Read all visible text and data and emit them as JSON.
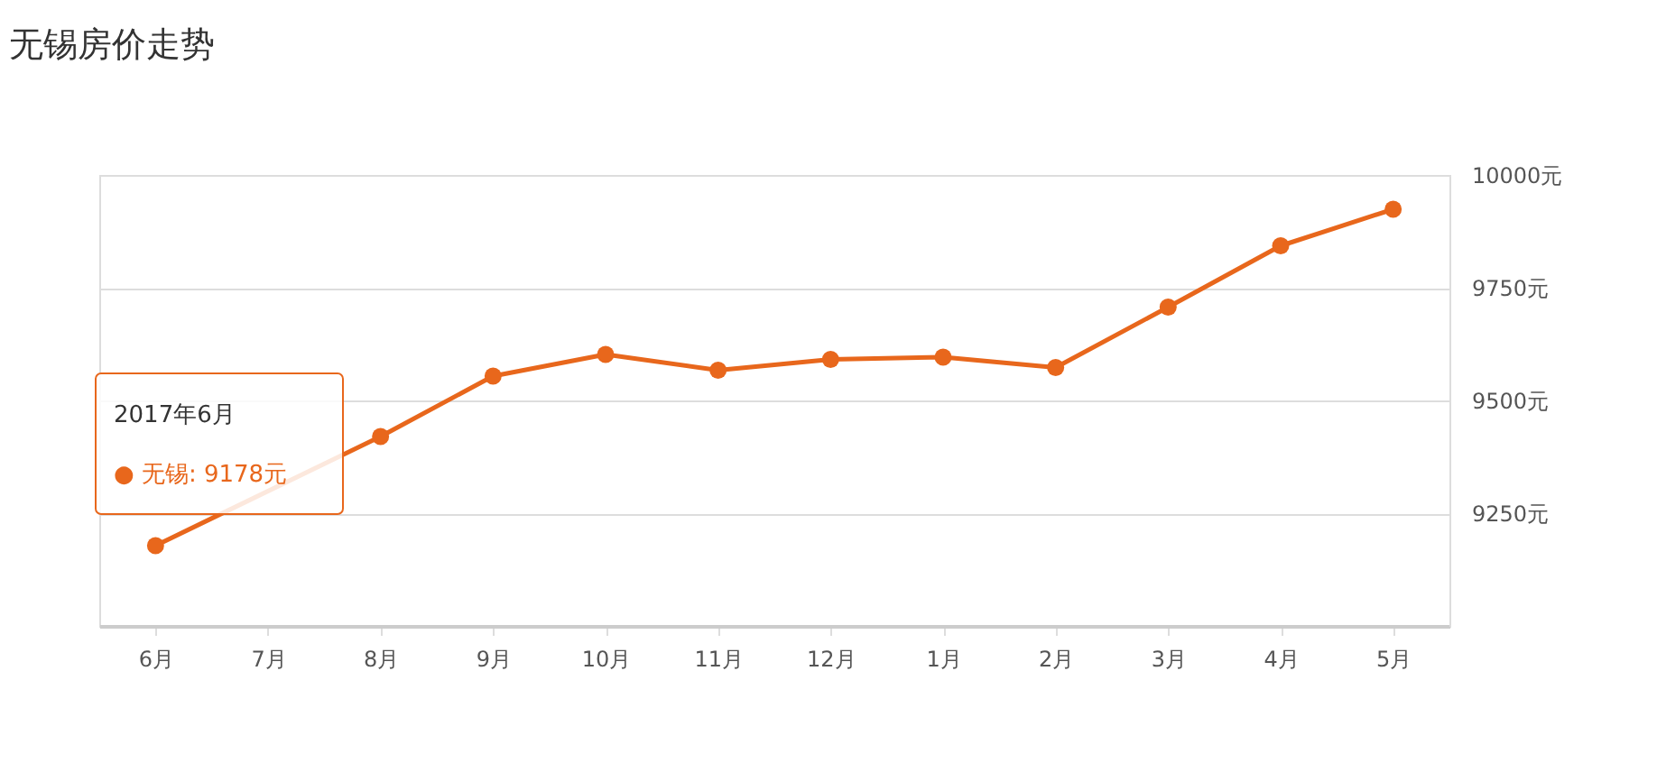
{
  "chart_data": {
    "type": "line",
    "title": "无锡房价走势",
    "categories": [
      "6月",
      "7月",
      "8月",
      "9月",
      "10月",
      "11月",
      "12月",
      "1月",
      "2月",
      "3月",
      "4月",
      "5月"
    ],
    "series": [
      {
        "color": "#e8671c",
        "values": [
          9178,
          null,
          9420,
          9554,
          9602,
          9567,
          9591,
          9596,
          9573,
          9707,
          9843,
          9924
        ]
      }
    ],
    "ylim": [
      9000,
      10000
    ],
    "yticks": [
      {
        "value": 9250,
        "label": "9250元"
      },
      {
        "value": 9500,
        "label": "9500元"
      },
      {
        "value": 9750,
        "label": "9750元"
      },
      {
        "value": 10000,
        "label": "10000元"
      }
    ],
    "grid": "y",
    "marker": "circle",
    "line_style": "solid",
    "annotations": [
      "2017年6月",
      "● 无锡:   9178元"
    ]
  }
}
